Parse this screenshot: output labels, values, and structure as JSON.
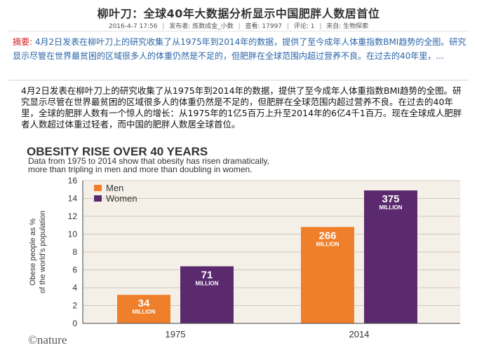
{
  "article": {
    "title": "柳叶刀：全球40年大数据分析显示中国肥胖人数居首位",
    "date": "2016-4-7 17:56",
    "publisher": "发布者: 炼数成金_小数",
    "views": "查看: 17997",
    "comments": "评论: 1",
    "source": "来自: 生物探索",
    "abstract_label": "摘要:",
    "abstract_text": "4月2日发表在柳叶刀上的研究收集了从1975年到2014年的数据，提供了至今成年人体重指数BMI趋势的全图。研究显示尽管在世界最贫困的区域很多人的体重仍然是不足的，但肥胖在全球范围内超过营养不良。在过去的40年里，...",
    "body_text": "4月2日发表在柳叶刀上的研究收集了从1975年到2014年的数据，提供了至今成年人体重指数BMI趋势的全图。研究显示尽管在世界最贫困的区域很多人的体重仍然是不足的，但肥胖在全球范围内超过营养不良。在过去的40年里，全球的肥胖人数有一个惊人的增长：从1975年的1亿5百万上升至2014年的6亿4千1百万。现在全球成人肥胖者人数超过体重过轻者，而中国的肥胖人数居全球首位。"
  },
  "chart_data": {
    "type": "bar",
    "title": "OBESITY RISE OVER 40 YEARS",
    "subtitle": "Data from 1975 to 2014 show that obesity has risen dramatically, more than tripling in men and more than doubling in women.",
    "ylabel_line1": "Obese people as %",
    "ylabel_line2": "of the world's population",
    "categories": [
      "1975",
      "2014"
    ],
    "series": [
      {
        "name": "Men",
        "color": "#ef7f2a",
        "values": [
          3.2,
          10.8
        ],
        "labels": [
          "34",
          "266"
        ]
      },
      {
        "name": "Women",
        "color": "#5b2a6e",
        "values": [
          6.4,
          14.9
        ],
        "labels": [
          "71",
          "375"
        ]
      }
    ],
    "label_unit": "MILLION",
    "ylim": [
      0,
      16
    ],
    "yticks": [
      "0",
      "2",
      "4",
      "6",
      "8",
      "10",
      "12",
      "14",
      "16"
    ],
    "grid": true,
    "legend": "top-left",
    "source": "©nature"
  }
}
